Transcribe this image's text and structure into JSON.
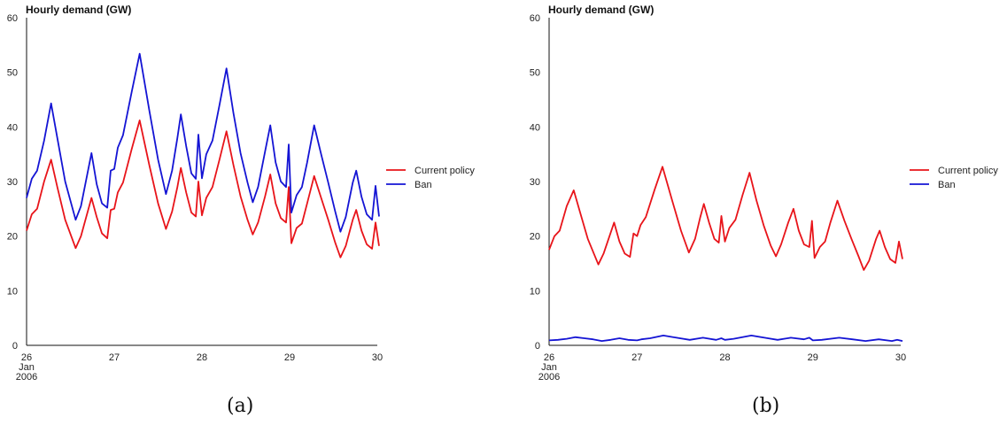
{
  "chart_data": [
    {
      "type": "line",
      "title": "Hourly demand (GW)",
      "panel_label": "(a)",
      "ylim": [
        0,
        60
      ],
      "yticks": [
        "0",
        "10",
        "20",
        "30",
        "40",
        "50",
        "60"
      ],
      "xlim": [
        0,
        4
      ],
      "xtick_values": [
        0,
        1,
        2,
        3,
        4
      ],
      "xticks": [
        {
          "value": 0,
          "lines": [
            "26",
            "Jan",
            "2006"
          ]
        },
        {
          "value": 1,
          "lines": [
            "27"
          ]
        },
        {
          "value": 2,
          "lines": [
            "28"
          ]
        },
        {
          "value": 3,
          "lines": [
            "29"
          ]
        },
        {
          "value": 4,
          "lines": [
            "30"
          ]
        }
      ],
      "grid": false,
      "legend_position": "right",
      "series": [
        {
          "name": "Current policy",
          "color": "#e8141a",
          "points": [
            [
              0,
              21
            ],
            [
              0.06,
              24
            ],
            [
              0.12,
              25
            ],
            [
              0.2,
              30
            ],
            [
              0.28,
              34
            ],
            [
              0.35,
              29
            ],
            [
              0.44,
              23
            ],
            [
              0.56,
              17.8
            ],
            [
              0.62,
              20
            ],
            [
              0.74,
              27
            ],
            [
              0.8,
              23.5
            ],
            [
              0.86,
              20.5
            ],
            [
              0.92,
              19.6
            ],
            [
              0.96,
              24.8
            ],
            [
              1.0,
              25
            ],
            [
              1.04,
              28
            ],
            [
              1.1,
              29.8
            ],
            [
              1.2,
              36
            ],
            [
              1.29,
              41.2
            ],
            [
              1.4,
              33
            ],
            [
              1.5,
              26
            ],
            [
              1.59,
              21.3
            ],
            [
              1.66,
              24.5
            ],
            [
              1.72,
              29
            ],
            [
              1.76,
              32.5
            ],
            [
              1.82,
              28
            ],
            [
              1.88,
              24.3
            ],
            [
              1.93,
              23.6
            ],
            [
              1.96,
              30
            ],
            [
              2.0,
              23.8
            ],
            [
              2.05,
              27
            ],
            [
              2.12,
              29
            ],
            [
              2.2,
              34
            ],
            [
              2.28,
              39.2
            ],
            [
              2.36,
              33
            ],
            [
              2.44,
              27.3
            ],
            [
              2.52,
              23
            ],
            [
              2.58,
              20.3
            ],
            [
              2.64,
              22.5
            ],
            [
              2.72,
              27.3
            ],
            [
              2.78,
              31.3
            ],
            [
              2.84,
              26
            ],
            [
              2.9,
              23.3
            ],
            [
              2.96,
              22.5
            ],
            [
              2.99,
              29
            ],
            [
              3.02,
              18.7
            ],
            [
              3.08,
              21.5
            ],
            [
              3.14,
              22.3
            ],
            [
              3.2,
              26
            ],
            [
              3.28,
              31
            ],
            [
              3.36,
              27
            ],
            [
              3.44,
              23
            ],
            [
              3.52,
              18.8
            ],
            [
              3.58,
              16.1
            ],
            [
              3.64,
              18.2
            ],
            [
              3.72,
              23
            ],
            [
              3.76,
              24.8
            ],
            [
              3.82,
              21
            ],
            [
              3.88,
              18.5
            ],
            [
              3.94,
              17.7
            ],
            [
              3.98,
              22.5
            ],
            [
              4.02,
              18.2
            ]
          ]
        },
        {
          "name": "Ban",
          "color": "#1414d4",
          "points": [
            [
              0,
              27
            ],
            [
              0.06,
              30.5
            ],
            [
              0.12,
              32
            ],
            [
              0.2,
              37.5
            ],
            [
              0.28,
              44.3
            ],
            [
              0.35,
              38
            ],
            [
              0.44,
              30
            ],
            [
              0.56,
              23
            ],
            [
              0.62,
              25.5
            ],
            [
              0.74,
              35.2
            ],
            [
              0.8,
              29.5
            ],
            [
              0.86,
              26
            ],
            [
              0.92,
              25.2
            ],
            [
              0.96,
              32
            ],
            [
              1.0,
              32.3
            ],
            [
              1.04,
              36.2
            ],
            [
              1.1,
              38.5
            ],
            [
              1.2,
              46.5
            ],
            [
              1.29,
              53.4
            ],
            [
              1.4,
              43
            ],
            [
              1.5,
              34
            ],
            [
              1.59,
              27.7
            ],
            [
              1.66,
              32
            ],
            [
              1.72,
              38
            ],
            [
              1.76,
              42.3
            ],
            [
              1.82,
              36.5
            ],
            [
              1.88,
              31.5
            ],
            [
              1.93,
              30.5
            ],
            [
              1.96,
              38.6
            ],
            [
              2.0,
              30.6
            ],
            [
              2.05,
              35
            ],
            [
              2.12,
              37.5
            ],
            [
              2.2,
              44
            ],
            [
              2.28,
              50.7
            ],
            [
              2.36,
              42.5
            ],
            [
              2.44,
              35.2
            ],
            [
              2.52,
              29.8
            ],
            [
              2.58,
              26.2
            ],
            [
              2.64,
              29
            ],
            [
              2.72,
              35.5
            ],
            [
              2.78,
              40.3
            ],
            [
              2.84,
              33.5
            ],
            [
              2.9,
              30
            ],
            [
              2.96,
              29
            ],
            [
              2.99,
              36.8
            ],
            [
              3.02,
              24.3
            ],
            [
              3.08,
              27.5
            ],
            [
              3.14,
              29
            ],
            [
              3.2,
              33.5
            ],
            [
              3.28,
              40.3
            ],
            [
              3.36,
              35
            ],
            [
              3.44,
              29.8
            ],
            [
              3.52,
              24.5
            ],
            [
              3.58,
              20.8
            ],
            [
              3.64,
              23.5
            ],
            [
              3.72,
              29.8
            ],
            [
              3.76,
              32
            ],
            [
              3.82,
              27.2
            ],
            [
              3.88,
              24
            ],
            [
              3.94,
              23
            ],
            [
              3.98,
              29.2
            ],
            [
              4.02,
              23.6
            ]
          ]
        }
      ]
    },
    {
      "type": "line",
      "title": "Hourly demand (GW)",
      "panel_label": "(b)",
      "ylim": [
        0,
        60
      ],
      "yticks": [
        "0",
        "10",
        "20",
        "30",
        "40",
        "50",
        "60"
      ],
      "xlim": [
        0,
        4
      ],
      "xtick_values": [
        0,
        1,
        2,
        3,
        4
      ],
      "xticks": [
        {
          "value": 0,
          "lines": [
            "26",
            "Jan",
            "2006"
          ]
        },
        {
          "value": 1,
          "lines": [
            "27"
          ]
        },
        {
          "value": 2,
          "lines": [
            "28"
          ]
        },
        {
          "value": 3,
          "lines": [
            "29"
          ]
        },
        {
          "value": 4,
          "lines": [
            "30"
          ]
        }
      ],
      "grid": false,
      "legend_position": "right",
      "series": [
        {
          "name": "Current policy",
          "color": "#e8141a",
          "points": [
            [
              0,
              17.5
            ],
            [
              0.06,
              20
            ],
            [
              0.12,
              21
            ],
            [
              0.2,
              25.5
            ],
            [
              0.28,
              28.4
            ],
            [
              0.35,
              24.5
            ],
            [
              0.44,
              19.5
            ],
            [
              0.56,
              14.8
            ],
            [
              0.62,
              16.8
            ],
            [
              0.74,
              22.5
            ],
            [
              0.8,
              19
            ],
            [
              0.86,
              16.8
            ],
            [
              0.92,
              16.2
            ],
            [
              0.96,
              20.5
            ],
            [
              1.0,
              20
            ],
            [
              1.04,
              22
            ],
            [
              1.1,
              23.5
            ],
            [
              1.2,
              28.5
            ],
            [
              1.29,
              32.7
            ],
            [
              1.4,
              26.5
            ],
            [
              1.5,
              21
            ],
            [
              1.59,
              17
            ],
            [
              1.66,
              19.5
            ],
            [
              1.72,
              23.5
            ],
            [
              1.76,
              25.9
            ],
            [
              1.82,
              22.5
            ],
            [
              1.88,
              19.5
            ],
            [
              1.93,
              18.8
            ],
            [
              1.96,
              23.7
            ],
            [
              2.0,
              19
            ],
            [
              2.05,
              21.5
            ],
            [
              2.12,
              23
            ],
            [
              2.2,
              27.5
            ],
            [
              2.28,
              31.6
            ],
            [
              2.36,
              26.5
            ],
            [
              2.44,
              22
            ],
            [
              2.52,
              18.3
            ],
            [
              2.58,
              16.3
            ],
            [
              2.64,
              18.5
            ],
            [
              2.72,
              22.5
            ],
            [
              2.78,
              25
            ],
            [
              2.84,
              21
            ],
            [
              2.9,
              18.5
            ],
            [
              2.96,
              18
            ],
            [
              2.99,
              22.8
            ],
            [
              3.02,
              16
            ],
            [
              3.08,
              18
            ],
            [
              3.14,
              19
            ],
            [
              3.2,
              22.5
            ],
            [
              3.28,
              26.5
            ],
            [
              3.36,
              22.8
            ],
            [
              3.44,
              19.5
            ],
            [
              3.52,
              16.3
            ],
            [
              3.58,
              13.8
            ],
            [
              3.64,
              15.5
            ],
            [
              3.72,
              19.5
            ],
            [
              3.76,
              21
            ],
            [
              3.82,
              18
            ],
            [
              3.88,
              15.8
            ],
            [
              3.94,
              15.1
            ],
            [
              3.98,
              19
            ],
            [
              4.02,
              15.8
            ]
          ]
        },
        {
          "name": "Ban",
          "color": "#1414d4",
          "points": [
            [
              0,
              0.9
            ],
            [
              0.1,
              1.0
            ],
            [
              0.2,
              1.2
            ],
            [
              0.3,
              1.5
            ],
            [
              0.4,
              1.3
            ],
            [
              0.5,
              1.1
            ],
            [
              0.6,
              0.8
            ],
            [
              0.7,
              1.0
            ],
            [
              0.8,
              1.3
            ],
            [
              0.9,
              1.0
            ],
            [
              1.0,
              0.9
            ],
            [
              1.05,
              1.1
            ],
            [
              1.15,
              1.3
            ],
            [
              1.3,
              1.8
            ],
            [
              1.45,
              1.4
            ],
            [
              1.6,
              1.0
            ],
            [
              1.75,
              1.4
            ],
            [
              1.9,
              1.0
            ],
            [
              1.96,
              1.3
            ],
            [
              2.0,
              1.0
            ],
            [
              2.1,
              1.2
            ],
            [
              2.3,
              1.8
            ],
            [
              2.45,
              1.4
            ],
            [
              2.6,
              1.0
            ],
            [
              2.75,
              1.4
            ],
            [
              2.9,
              1.1
            ],
            [
              2.96,
              1.4
            ],
            [
              3.0,
              0.9
            ],
            [
              3.1,
              1.0
            ],
            [
              3.3,
              1.4
            ],
            [
              3.45,
              1.1
            ],
            [
              3.6,
              0.8
            ],
            [
              3.75,
              1.1
            ],
            [
              3.9,
              0.8
            ],
            [
              3.96,
              1.0
            ],
            [
              4.02,
              0.8
            ]
          ]
        }
      ]
    }
  ]
}
